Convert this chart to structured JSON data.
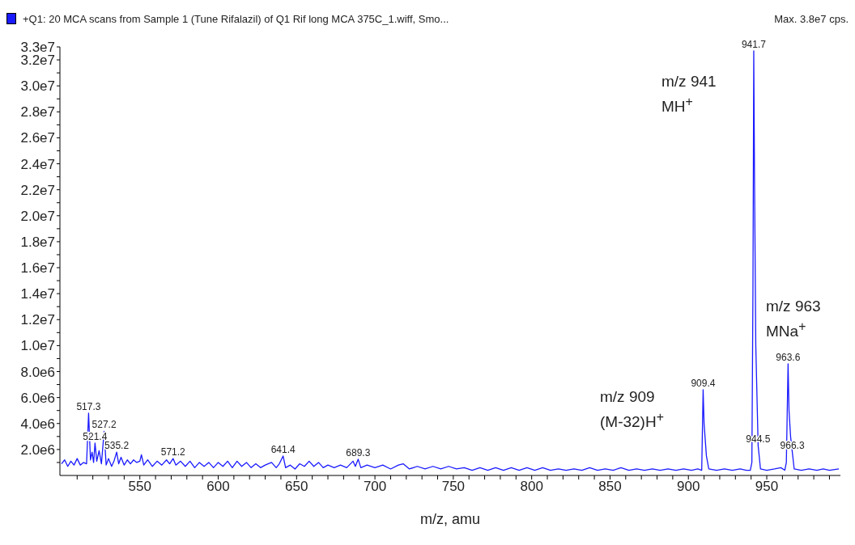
{
  "chart_data": {
    "type": "line",
    "xlabel": "m/z, amu",
    "legend": "top left",
    "grid": false,
    "marker": "none",
    "line_style": "solid",
    "xlim": [
      499,
      997
    ],
    "ylim": [
      0,
      33000000
    ],
    "xticks": [
      {
        "value": 510,
        "label": null
      },
      {
        "value": 520,
        "label": null
      },
      {
        "value": 530,
        "label": null
      },
      {
        "value": 540,
        "label": null
      },
      550,
      {
        "value": 560,
        "label": null
      },
      {
        "value": 570,
        "label": null
      },
      {
        "value": 580,
        "label": null
      },
      {
        "value": 590,
        "label": null
      },
      600,
      {
        "value": 610,
        "label": null
      },
      {
        "value": 620,
        "label": null
      },
      {
        "value": 630,
        "label": null
      },
      {
        "value": 640,
        "label": null
      },
      650,
      {
        "value": 660,
        "label": null
      },
      {
        "value": 670,
        "label": null
      },
      {
        "value": 680,
        "label": null
      },
      {
        "value": 690,
        "label": null
      },
      700,
      {
        "value": 710,
        "label": null
      },
      {
        "value": 720,
        "label": null
      },
      {
        "value": 730,
        "label": null
      },
      {
        "value": 740,
        "label": null
      },
      750,
      {
        "value": 760,
        "label": null
      },
      {
        "value": 770,
        "label": null
      },
      {
        "value": 780,
        "label": null
      },
      {
        "value": 790,
        "label": null
      },
      800,
      {
        "value": 810,
        "label": null
      },
      {
        "value": 820,
        "label": null
      },
      {
        "value": 830,
        "label": null
      },
      {
        "value": 840,
        "label": null
      },
      850,
      {
        "value": 860,
        "label": null
      },
      {
        "value": 870,
        "label": null
      },
      {
        "value": 880,
        "label": null
      },
      {
        "value": 890,
        "label": null
      },
      900,
      {
        "value": 910,
        "label": null
      },
      {
        "value": 920,
        "label": null
      },
      {
        "value": 930,
        "label": null
      },
      {
        "value": 940,
        "label": null
      },
      950,
      {
        "value": 960,
        "label": null
      },
      {
        "value": 970,
        "label": null
      },
      {
        "value": 980,
        "label": null
      },
      {
        "value": 990,
        "label": null
      }
    ],
    "yticks": [
      {
        "value": 1000000,
        "label": null
      },
      {
        "value": 2000000,
        "label": "2.0e6"
      },
      {
        "value": 3000000,
        "label": null
      },
      {
        "value": 4000000,
        "label": "4.0e6"
      },
      {
        "value": 5000000,
        "label": null
      },
      {
        "value": 6000000,
        "label": "6.0e6"
      },
      {
        "value": 7000000,
        "label": null
      },
      {
        "value": 8000000,
        "label": "8.0e6"
      },
      {
        "value": 9000000,
        "label": null
      },
      {
        "value": 10000000,
        "label": "1.0e7"
      },
      {
        "value": 11000000,
        "label": null
      },
      {
        "value": 12000000,
        "label": "1.2e7"
      },
      {
        "value": 13000000,
        "label": null
      },
      {
        "value": 14000000,
        "label": "1.4e7"
      },
      {
        "value": 15000000,
        "label": null
      },
      {
        "value": 16000000,
        "label": "1.6e7"
      },
      {
        "value": 17000000,
        "label": null
      },
      {
        "value": 18000000,
        "label": "1.8e7"
      },
      {
        "value": 19000000,
        "label": null
      },
      {
        "value": 20000000,
        "label": "2.0e7"
      },
      {
        "value": 21000000,
        "label": null
      },
      {
        "value": 22000000,
        "label": "2.2e7"
      },
      {
        "value": 23000000,
        "label": null
      },
      {
        "value": 24000000,
        "label": "2.4e7"
      },
      {
        "value": 25000000,
        "label": null
      },
      {
        "value": 26000000,
        "label": "2.6e7"
      },
      {
        "value": 27000000,
        "label": null
      },
      {
        "value": 28000000,
        "label": "2.8e7"
      },
      {
        "value": 29000000,
        "label": null
      },
      {
        "value": 30000000,
        "label": "3.0e7"
      },
      {
        "value": 31000000,
        "label": null
      },
      {
        "value": 32000000,
        "label": "3.2e7"
      },
      {
        "value": 33000000,
        "label": "3.3e7"
      }
    ],
    "series": [
      {
        "name": "+Q1: 20 MCA scans from Sample 1 (Tune Rifalazil) of Q1 Rif long MCA 375C_1.wiff, Smo...",
        "color": "#1a1aff",
        "x": [
          500,
          502,
          504,
          506,
          508,
          510,
          512,
          514,
          516,
          517.3,
          518.5,
          519.5,
          520.5,
          521.4,
          522.5,
          524,
          525.5,
          527.2,
          528.5,
          530,
          532,
          533.5,
          535.2,
          536.5,
          538,
          540,
          542,
          544,
          546,
          548,
          550,
          551,
          552.5,
          555,
          558,
          561,
          564,
          567,
          569,
          571.2,
          573,
          576,
          579,
          582,
          585,
          588,
          591,
          594,
          597,
          600,
          603,
          606,
          609,
          612,
          615,
          618,
          621,
          624,
          627,
          630,
          634,
          637,
          639,
          641.4,
          643,
          646,
          649,
          652,
          655,
          658,
          661,
          664,
          667,
          670,
          674,
          678,
          682,
          686,
          687.5,
          689.3,
          691,
          695,
          700,
          705,
          710,
          715,
          718,
          722,
          727,
          732,
          737,
          742,
          747,
          752,
          757,
          762,
          767,
          772,
          777,
          782,
          787,
          792,
          797,
          802,
          807,
          812,
          817,
          822,
          827,
          832,
          837,
          842,
          847,
          852,
          857,
          862,
          867,
          872,
          877,
          882,
          887,
          892,
          897,
          902,
          906,
          908.5,
          909.4,
          910,
          911.5,
          913,
          918,
          923,
          928,
          933,
          937,
          939.5,
          940.5,
          941.2,
          941.7,
          942.2,
          943,
          944.5,
          946,
          950,
          955,
          959,
          961.5,
          962.5,
          963.6,
          964.2,
          965.2,
          966.3,
          967.5,
          972,
          977,
          982,
          986,
          990,
          996
        ],
        "values": [
          900000,
          1200000,
          700000,
          1100000,
          800000,
          1300000,
          800000,
          1000000,
          900000,
          4800000,
          1200000,
          1800000,
          1000000,
          2500000,
          1100000,
          1900000,
          900000,
          3400000,
          800000,
          1300000,
          700000,
          1100000,
          1800000,
          900000,
          1400000,
          800000,
          1200000,
          900000,
          1200000,
          1000000,
          1100000,
          1600000,
          800000,
          1200000,
          700000,
          1100000,
          800000,
          1200000,
          900000,
          1300000,
          800000,
          1100000,
          700000,
          1100000,
          600000,
          1000000,
          700000,
          1000000,
          600000,
          1000000,
          700000,
          1100000,
          600000,
          1100000,
          700000,
          1000000,
          600000,
          900000,
          600000,
          800000,
          1000000,
          600000,
          900000,
          1500000,
          600000,
          800000,
          500000,
          900000,
          700000,
          1100000,
          700000,
          1000000,
          600000,
          800000,
          600000,
          800000,
          600000,
          1100000,
          700000,
          1250000,
          600000,
          800000,
          600000,
          800000,
          500000,
          800000,
          900000,
          500000,
          700000,
          500000,
          700000,
          500000,
          700000,
          500000,
          600000,
          400000,
          600000,
          400000,
          600000,
          400000,
          600000,
          400000,
          600000,
          400000,
          600000,
          400000,
          500000,
          400000,
          500000,
          400000,
          600000,
          400000,
          500000,
          400000,
          600000,
          400000,
          500000,
          400000,
          500000,
          400000,
          500000,
          400000,
          500000,
          400000,
          500000,
          400000,
          6600000,
          4000000,
          1500000,
          500000,
          400000,
          500000,
          400000,
          500000,
          400000,
          400000,
          1000000,
          14500000,
          32700000,
          22700000,
          10000000,
          2300000,
          500000,
          400000,
          500000,
          600000,
          400000,
          1000000,
          8600000,
          5000000,
          3000000,
          1800000,
          500000,
          400000,
          500000,
          400000,
          500000,
          400000,
          500000
        ]
      }
    ],
    "annotations": [
      "Max. 3.8e7 cps.",
      {
        "text": "517.3",
        "x": 517.3,
        "y": 4800000
      },
      {
        "text": "521.4",
        "x": 521.4,
        "y": 2500000
      },
      {
        "text": "527.2",
        "x": 527.2,
        "y": 3400000
      },
      {
        "text": "535.2",
        "x": 535.2,
        "y": 1800000
      },
      {
        "text": "571.2",
        "x": 571.2,
        "y": 1300000
      },
      {
        "text": "641.4",
        "x": 641.4,
        "y": 1500000
      },
      {
        "text": "689.3",
        "x": 689.3,
        "y": 1250000
      },
      {
        "text": "909.4",
        "x": 909.4,
        "y": 6600000
      },
      {
        "text": "941.7",
        "x": 941.7,
        "y": 32700000
      },
      {
        "text": "944.5",
        "x": 944.5,
        "y": 2300000
      },
      {
        "text": "963.6",
        "x": 963.6,
        "y": 8600000
      },
      {
        "text": "966.3",
        "x": 966.3,
        "y": 1800000
      },
      "m/z 941\nMH$^{+}$",
      "m/z 963\nMNa$^{+}$",
      "m/z 909\n(M-32)H$^{+}$"
    ]
  }
}
